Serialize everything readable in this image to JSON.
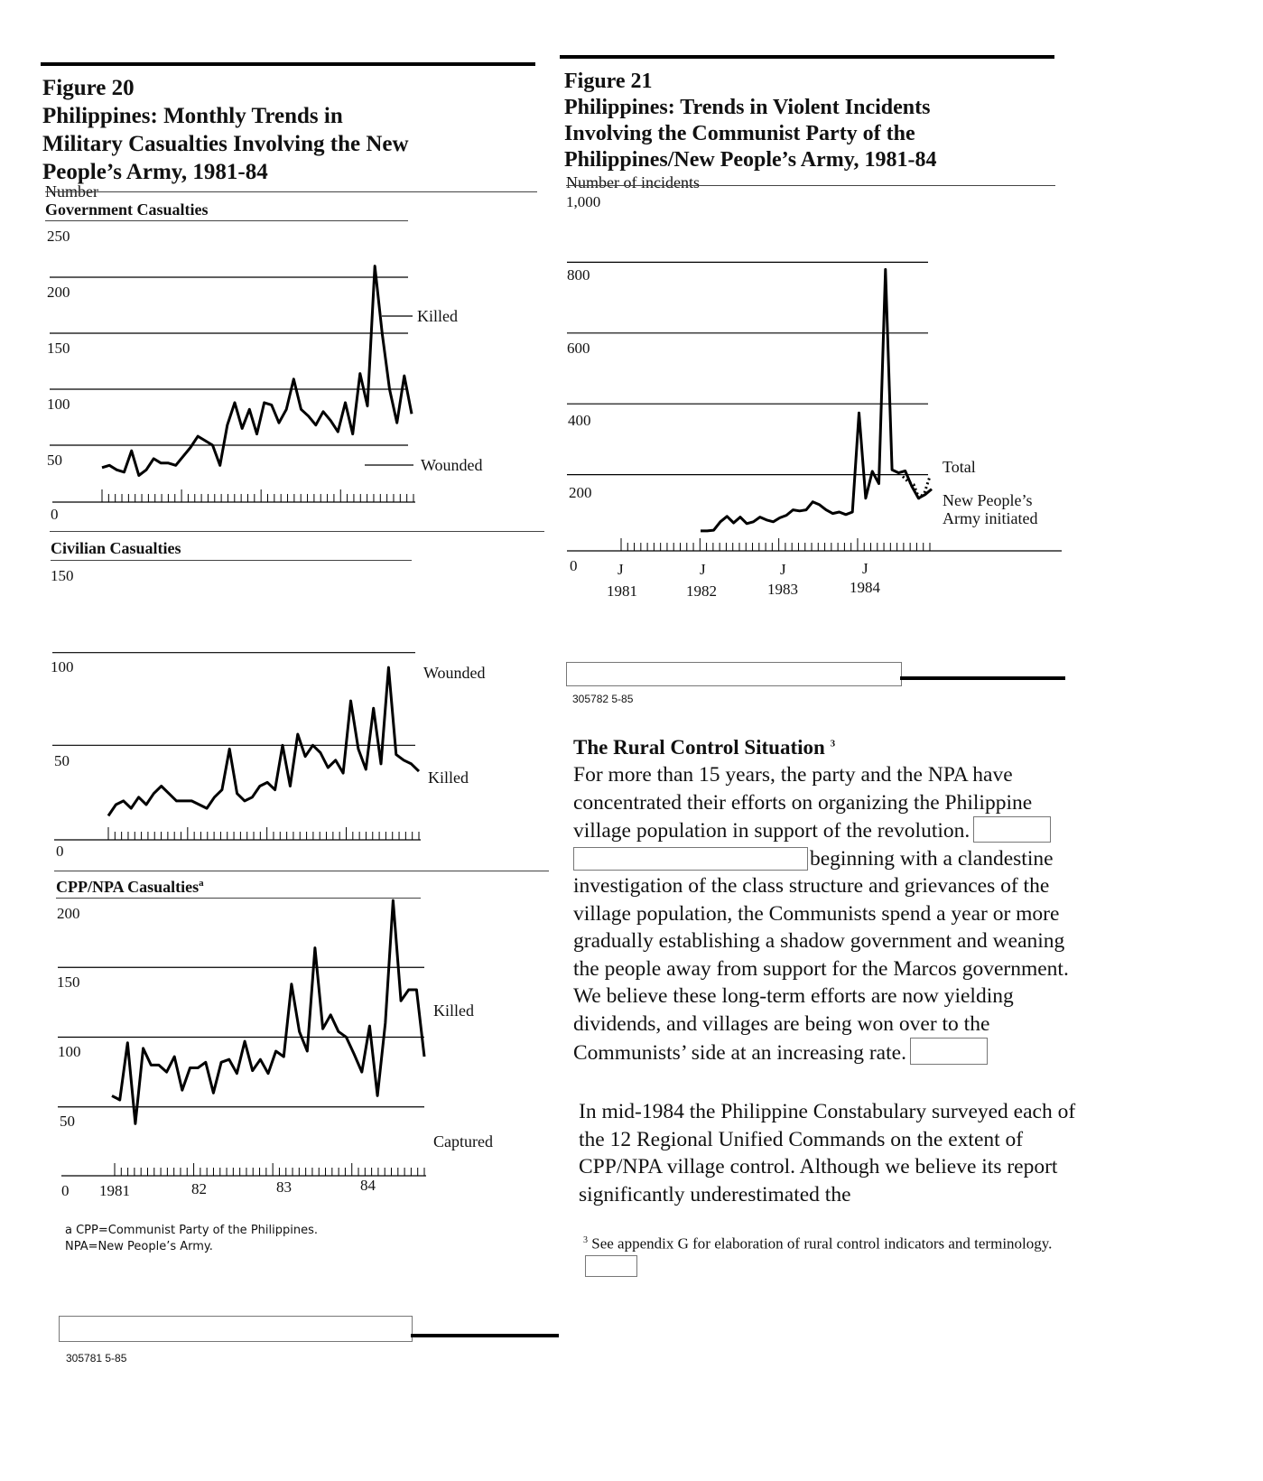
{
  "fig20": {
    "title_lines": [
      "Figure 20",
      "Philippines: Monthly Trends in",
      "Military Casualties Involving the New",
      "People’s Army, 1981-84"
    ],
    "unit_label": "Number",
    "code": "305781 5-85",
    "footnote_lines": [
      "a CPP=Communist Party of the Philippines.",
      "NPA=New People’s Army."
    ]
  },
  "fig21": {
    "title_lines": [
      "Figure 21",
      "Philippines: Trends in Violent Incidents",
      "Involving the Communist Party of the",
      "Philippines/New People’s Army, 1981-84"
    ],
    "unit_label": "Number of incidents",
    "code": "305782 5-85"
  },
  "chart_data": [
    {
      "type": "line",
      "title": "Government Casualties",
      "y_ticks": [
        "250",
        "200",
        "150",
        "100",
        "50",
        "0"
      ],
      "ylim": [
        0,
        250
      ],
      "series": [
        {
          "name": "Killed",
          "values": [
            30,
            32,
            28,
            26,
            45,
            23,
            28,
            38,
            34,
            34,
            32,
            40,
            48,
            58,
            54,
            50,
            32,
            68,
            88,
            65,
            82,
            60,
            88,
            86,
            70,
            82,
            109,
            82,
            76,
            68,
            80,
            72,
            62,
            88,
            60,
            114,
            85,
            210,
            150,
            100,
            70,
            112,
            78
          ]
        },
        {
          "name": "Wounded",
          "values": []
        }
      ],
      "series_labels": {
        "killed": "Killed",
        "wounded": "Wounded"
      }
    },
    {
      "type": "line",
      "title": "Civilian Casualties",
      "y_ticks": [
        "150",
        "100",
        "50",
        "0"
      ],
      "ylim": [
        0,
        150
      ],
      "series": [
        {
          "name": "Wounded",
          "values": []
        },
        {
          "name": "Killed",
          "values": [
            12,
            18,
            20,
            16,
            22,
            18,
            24,
            28,
            24,
            20,
            20,
            20,
            18,
            16,
            22,
            26,
            48,
            24,
            20,
            22,
            28,
            30,
            26,
            50,
            28,
            56,
            44,
            50,
            46,
            38,
            42,
            35,
            74,
            48,
            37,
            70,
            40,
            92,
            45,
            42,
            40,
            36
          ]
        }
      ],
      "series_labels": {
        "wounded": "Wounded",
        "killed": "Killed"
      }
    },
    {
      "type": "line",
      "title": "CPP/NPA Casualties",
      "title_marker": "a",
      "y_ticks": [
        "200",
        "150",
        "100",
        "50",
        "0"
      ],
      "x_ticks": [
        "1981",
        "82",
        "83",
        "84"
      ],
      "ylim": [
        0,
        200
      ],
      "series": [
        {
          "name": "Killed",
          "values": [
            58,
            55,
            96,
            38,
            92,
            80,
            80,
            75,
            86,
            62,
            78,
            78,
            82,
            60,
            82,
            84,
            74,
            97,
            76,
            84,
            74,
            90,
            86,
            138,
            104,
            90,
            164,
            106,
            116,
            104,
            100,
            88,
            75,
            108,
            58,
            110,
            198,
            126,
            134,
            134,
            86
          ]
        },
        {
          "name": "Captured",
          "values": []
        }
      ],
      "series_labels": {
        "killed": "Killed",
        "captured": "Captured"
      }
    },
    {
      "type": "line",
      "title": "",
      "y_ticks": [
        "1,000",
        "800",
        "600",
        "400",
        "200",
        "0"
      ],
      "ylim": [
        0,
        1000
      ],
      "x_ticks": [
        {
          "month": "J",
          "year": "1981"
        },
        {
          "month": "J",
          "year": "1982"
        },
        {
          "month": "J",
          "year": "1983"
        },
        {
          "month": "J",
          "year": "1984"
        }
      ],
      "series": [
        {
          "name": "Total",
          "values": [
            210,
            195,
            188,
            150,
            165,
            210
          ]
        },
        {
          "name": "New People’s Army initiated",
          "values": [
            60,
            60,
            62,
            85,
            100,
            82,
            98,
            80,
            85,
            98,
            90,
            85,
            96,
            103,
            118,
            115,
            118,
            140,
            132,
            118,
            108,
            112,
            105,
            112,
            385,
            150,
            224,
            190,
            780,
            228,
            220,
            225,
            182,
            150,
            160,
            175
          ]
        }
      ],
      "series_labels": {
        "total": "Total",
        "npa_line1": "New People’s",
        "npa_line2": "Army initiated"
      }
    }
  ],
  "section": {
    "heading": "The Rural Control Situation",
    "heading_note": "3",
    "p1a": "For more than 15 years, the party and the NPA have concentrated their efforts on organizing the Philippine village population in support of the revolution.",
    "p1b": "beginning with a clandestine investigation of the class structure and grievances of the village population, the Communists spend a year or more gradually establishing a shadow government and weaning the people away from support for the Marcos government. We believe these long-term efforts are now yielding dividends, and villages are being won over to the Communists’ side at an increasing rate.",
    "p2": "In mid-1984 the Philippine Constabulary surveyed each of the 12 Regional Unified Commands on the extent of CPP/NPA village control. Although we believe its report significantly underestimated the",
    "footnote_mark": "3",
    "footnote": "See appendix G for elaboration of rural control indicators and terminology."
  }
}
